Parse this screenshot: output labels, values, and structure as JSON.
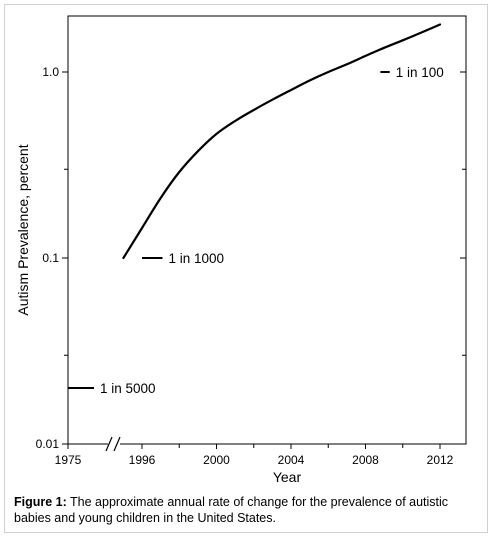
{
  "chart_data": {
    "type": "line",
    "title": "",
    "xlabel": "Year",
    "ylabel": "Autism Prevalence, percent",
    "y_scale": "log",
    "ylim": [
      0.01,
      2.3
    ],
    "x_ticks": [
      "1975",
      "1996",
      "2000",
      "2004",
      "2008",
      "2012"
    ],
    "y_ticks": [
      "0.01",
      "0.1",
      "1.0"
    ],
    "x_axis_break": true,
    "grid": false,
    "series": [
      {
        "x": [
          1995,
          1996,
          1997,
          1998,
          1999,
          2000,
          2001,
          2002,
          2003,
          2004,
          2005,
          2006,
          2007,
          2008,
          2009,
          2010,
          2011,
          2012
        ],
        "y": [
          0.1,
          0.145,
          0.21,
          0.29,
          0.375,
          0.465,
          0.545,
          0.625,
          0.71,
          0.8,
          0.9,
          1.0,
          1.1,
          1.22,
          1.35,
          1.48,
          1.63,
          1.8
        ]
      }
    ],
    "reference_marks": [
      {
        "label": "1 in 5000",
        "y": 0.02,
        "x_from": 1975,
        "x_to": 1976.3
      },
      {
        "label": "1 in 1000",
        "y": 0.1,
        "x_from": 1996,
        "x_to": 1997.1
      },
      {
        "label": "1 in 100",
        "y": 1.0,
        "x_from": 2008.8,
        "x_to": 2009.3
      }
    ]
  },
  "caption": {
    "label": "Figure 1:",
    "text": " The approximate annual rate of change for the prevalence of autistic babies and young children in the United States."
  }
}
